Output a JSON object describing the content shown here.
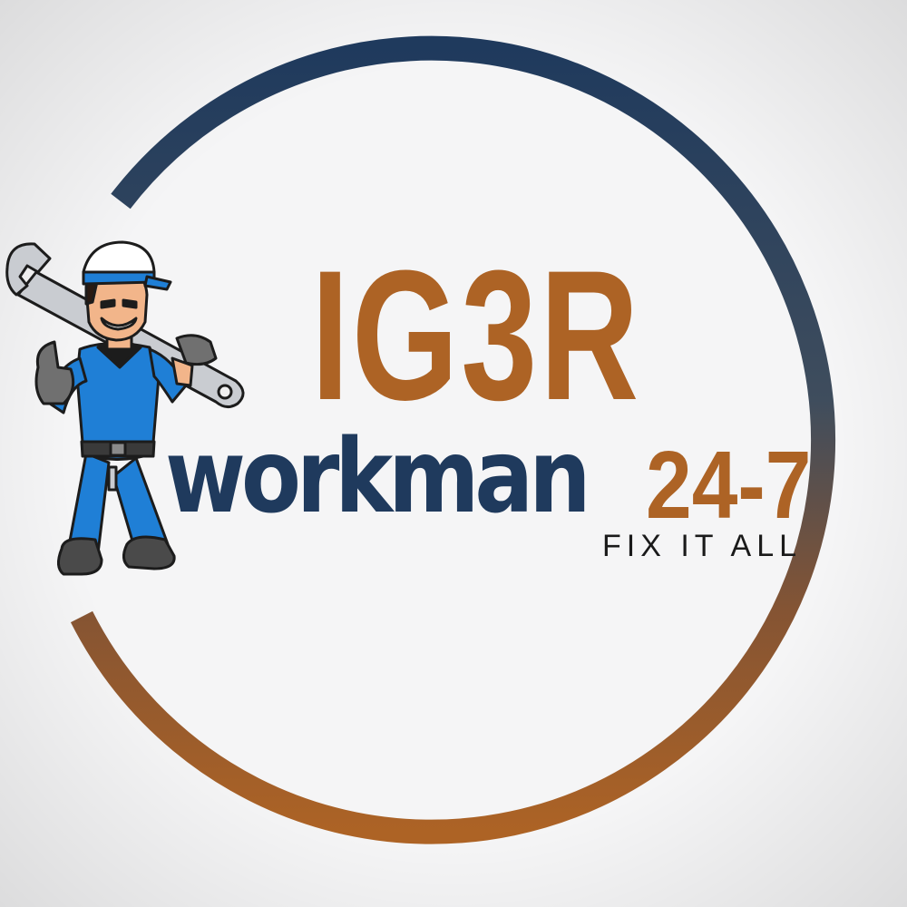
{
  "logo": {
    "title": "IG3R",
    "name": "WORKMAN",
    "hours": "24-7",
    "tagline": "FIX IT ALL",
    "mascot_icon": "handyman-mascot-icon"
  },
  "colors": {
    "background": "#f5f5f6",
    "ring_top": "#1f3a5d",
    "ring_bottom": "#ad6325",
    "title": "#ad6325",
    "name": "#1f3a5d",
    "tagline": "#1a1a1a",
    "uniform": "#1f7fd6",
    "wrench": "#c9ccd1"
  }
}
